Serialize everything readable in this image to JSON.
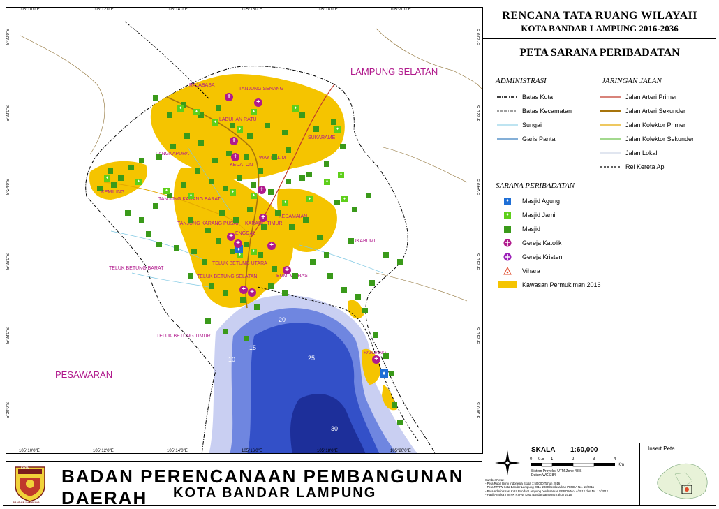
{
  "header": {
    "title1": "RENCANA TATA RUANG WILAYAH",
    "title2": "KOTA BANDAR LAMPUNG 2016-2036",
    "map_title": "PETA SARANA PERIBADATAN"
  },
  "legend": {
    "admin_heading": "ADMINISTRASI",
    "admin_items": [
      "Batas Kota",
      "Batas Kecamatan",
      "Sungai",
      "Garis Pantai"
    ],
    "road_heading": "JARINGAN JALAN",
    "road_items": [
      "Jalan Arteri Primer",
      "Jalan Arteri Sekunder",
      "Jalan Kolektor Primer",
      "Jalan Kolektor Sekunder",
      "Jalan Lokal",
      "Rel Kereta Api"
    ],
    "worship_heading": "SARANA PERIBADATAN",
    "worship_items": [
      "Masjid Agung",
      "Masjid Jami",
      "Masjid",
      "Gereja Katolik",
      "Gereja Kristen",
      "Vihara",
      "Kawasan Permukiman 2016"
    ],
    "colors": {
      "settlement": "#f5c400",
      "masjid": "#3a9a1a",
      "masjid_jami": "#5ecf1a",
      "masjid_agung": "#1f6fd6",
      "gereja": "#b0198c",
      "sea_deep": "#1d2f9a",
      "sea_shallow": "#c9cff2"
    }
  },
  "scale": {
    "label": "SKALA",
    "ratio": "1:60,000",
    "ticks": [
      "0",
      "0.5",
      "1",
      "2",
      "3",
      "4"
    ],
    "unit": "Km",
    "projection": "Sistem Proyeksi   UTM Zone 48 S",
    "datum": "Datum   WGS 84"
  },
  "sources": {
    "heading": "Sumber Peta :",
    "items": [
      "- Peta Rupa Bumi Indonesia Skala 1:50.000 Tahun 2016",
      "- Peta RTRW Kota Bandar Lampung 2011-2030 berdasarkan PERDA No. 10/2011",
      "- Peta Administrasi Kota Bandar Lampung berdasarkan PERDA No. 4/2012 dan No. 12/2012",
      "- Hasil Analisa Tim PK RTRW Kota Bandar Lampung Tahun 2016"
    ]
  },
  "inset": {
    "label": "Insert Peta"
  },
  "footer": {
    "agency_line1": "BADAN PERENCANAAN PEMBANGUNAN DAERAH",
    "agency_line2": "KOTA BANDAR LAMPUNG",
    "logo_text_top": "KOTA",
    "logo_text_bottom": "BANDAR LAMPUNG"
  },
  "map": {
    "lon_ticks": [
      "105°10'0\"E",
      "105°12'0\"E",
      "105°14'0\"E",
      "105°16'0\"E",
      "105°18'0\"E",
      "105°20'0\"E"
    ],
    "lat_ticks": [
      "5°20'0\"S",
      "5°22'0\"S",
      "5°24'0\"S",
      "5°26'0\"S",
      "5°28'0\"S",
      "5°30'0\"S"
    ],
    "regions": [
      "LAMPUNG SELATAN",
      "PESAWARAN"
    ],
    "districts": [
      "RAJABASA",
      "TANJUNG SENANG",
      "LABUHAN RATU",
      "SUKARAME",
      "LANGKAPURA",
      "KEDATON",
      "WAY HALIM",
      "KEMILING",
      "TANJUNG KARANG BARAT",
      "TANJUNG KARANG PUSAT",
      "KARANG TIMUR",
      "KEDAMAIAN",
      "ENGGAL",
      "SUKABUMI",
      "TELUK BETUNG BARAT",
      "TELUK BETUNG UTARA",
      "TELUK BETUNG SELATAN",
      "BUMI WARAS",
      "TELUK BETUNG TIMUR",
      "PANJANG"
    ],
    "depths": [
      "20",
      "15",
      "10",
      "25",
      "30"
    ]
  }
}
